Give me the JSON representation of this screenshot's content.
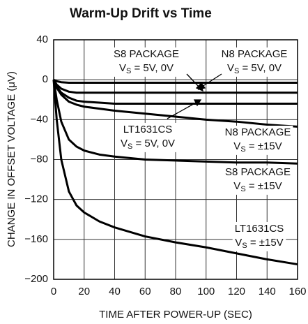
{
  "chart_data": {
    "type": "line",
    "title": "Warm-Up Drift vs Time",
    "xlabel": "TIME AFTER POWER-UP (SEC)",
    "ylabel": "CHANGE IN OFFSET VOLTAGE (μV)",
    "x": [
      0,
      2,
      5,
      10,
      15,
      20,
      30,
      40,
      60,
      80,
      100,
      120,
      140,
      160
    ],
    "series": [
      {
        "color": "#000000",
        "values": [
          0,
          -1.5,
          -2.5,
          -3,
          -3,
          -3,
          -3,
          -3,
          -3,
          -3,
          -3,
          -3,
          -3,
          -3
        ]
      },
      {
        "color": "#000000",
        "values": [
          0,
          -5,
          -9,
          -12,
          -13,
          -13,
          -13,
          -13,
          -13,
          -13,
          -13,
          -13,
          -13,
          -13
        ]
      },
      {
        "color": "#000000",
        "values": [
          0,
          -7,
          -13,
          -18,
          -21,
          -22,
          -23,
          -24,
          -24,
          -24,
          -24,
          -24,
          -24,
          -24
        ]
      },
      {
        "color": "#000000",
        "values": [
          0,
          -8,
          -15,
          -22,
          -25,
          -27,
          -29,
          -31,
          -34,
          -37,
          -40,
          -42,
          -45,
          -47
        ]
      },
      {
        "color": "#000000",
        "values": [
          0,
          -20,
          -42,
          -60,
          -67,
          -71,
          -75,
          -77,
          -80,
          -81,
          -82,
          -83,
          -83,
          -84
        ]
      },
      {
        "color": "#000000",
        "values": [
          0,
          -40,
          -80,
          -112,
          -126,
          -133,
          -142,
          -148,
          -157,
          -163,
          -168,
          -174,
          -180,
          -185
        ]
      }
    ],
    "annotations": [
      {
        "title": "S8 PACKAGE",
        "symbol": "V",
        "subscript": "S",
        "condition": " = 5V, 0V"
      },
      {
        "title": "N8 PACKAGE",
        "symbol": "V",
        "subscript": "S",
        "condition": " = 5V, 0V"
      },
      {
        "title": "LT1631CS",
        "symbol": "V",
        "subscript": "S",
        "condition": " = 5V, 0V"
      },
      {
        "title": "N8 PACKAGE",
        "symbol": "V",
        "subscript": "S",
        "condition": " = ±15V"
      },
      {
        "title": "S8 PACKAGE",
        "symbol": "V",
        "subscript": "S",
        "condition": " = ±15V"
      },
      {
        "title": "LT1631CS",
        "symbol": "V",
        "subscript": "S",
        "condition": " = ±15V"
      }
    ],
    "xlim": [
      0,
      160
    ],
    "xticks": [
      0,
      20,
      40,
      60,
      80,
      100,
      120,
      140,
      160
    ],
    "ylim": [
      -200,
      40
    ],
    "yticks": [
      {
        "value": -200,
        "label": "−200"
      },
      {
        "value": -160,
        "label": "−160"
      },
      {
        "value": -120,
        "label": "−120"
      },
      {
        "value": -80,
        "label": "−80"
      },
      {
        "value": -40,
        "label": "−40"
      },
      0,
      40
    ],
    "grid": true
  }
}
